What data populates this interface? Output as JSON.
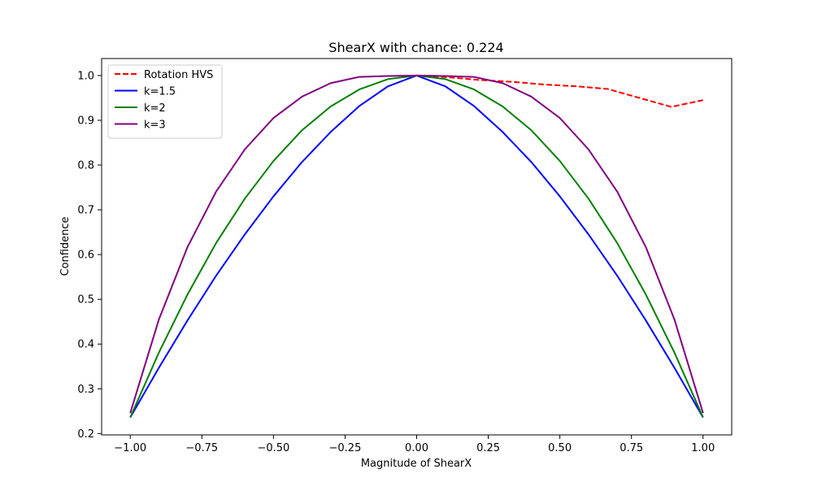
{
  "chart_data": {
    "type": "line",
    "title": "ShearX with chance: 0.224",
    "xlabel": "Magnitude of ShearX",
    "ylabel": "Confidence",
    "xlim": [
      -1.1,
      1.1
    ],
    "ylim": [
      0.197,
      1.038
    ],
    "xticks": [
      -1.0,
      -0.75,
      -0.5,
      -0.25,
      0.0,
      0.25,
      0.5,
      0.75,
      1.0
    ],
    "xtick_labels": [
      "−1.00",
      "−0.75",
      "−0.50",
      "−0.25",
      "0.00",
      "0.25",
      "0.50",
      "0.75",
      "1.00"
    ],
    "yticks": [
      0.2,
      0.3,
      0.4,
      0.5,
      0.6,
      0.7,
      0.8,
      0.9,
      1.0
    ],
    "ytick_labels": [
      "0.2",
      "0.3",
      "0.4",
      "0.5",
      "0.6",
      "0.7",
      "0.8",
      "0.9",
      "1.0"
    ],
    "grid": false,
    "legend_position": "top-left",
    "series": [
      {
        "name": "Rotation HVS",
        "color": "#ff0000",
        "dash": true,
        "x": [
          0.0,
          0.111,
          0.222,
          0.333,
          0.444,
          0.556,
          0.667,
          0.778,
          0.889,
          1.0
        ],
        "y": [
          1.0,
          0.996,
          0.99,
          0.986,
          0.98,
          0.976,
          0.97,
          0.95,
          0.93,
          0.945
        ]
      },
      {
        "name": "k=1.5",
        "color": "#0000ff",
        "dash": false,
        "x": [
          -1.0,
          -0.9,
          -0.8,
          -0.7,
          -0.6,
          -0.5,
          -0.4,
          -0.3,
          -0.2,
          -0.1,
          0.0,
          0.1,
          0.2,
          0.3,
          0.4,
          0.5,
          0.6,
          0.7,
          0.8,
          0.9,
          1.0
        ],
        "y": [
          0.236,
          0.347,
          0.453,
          0.553,
          0.645,
          0.73,
          0.807,
          0.874,
          0.932,
          0.976,
          1.0,
          0.976,
          0.932,
          0.874,
          0.807,
          0.73,
          0.645,
          0.553,
          0.453,
          0.347,
          0.236
        ]
      },
      {
        "name": "k=2",
        "color": "#008000",
        "dash": false,
        "x": [
          -1.0,
          -0.9,
          -0.8,
          -0.7,
          -0.6,
          -0.5,
          -0.4,
          -0.3,
          -0.2,
          -0.1,
          0.0,
          0.1,
          0.2,
          0.3,
          0.4,
          0.5,
          0.6,
          0.7,
          0.8,
          0.9,
          1.0
        ],
        "y": [
          0.236,
          0.381,
          0.511,
          0.626,
          0.725,
          0.809,
          0.878,
          0.931,
          0.969,
          0.992,
          1.0,
          0.992,
          0.969,
          0.931,
          0.878,
          0.809,
          0.725,
          0.626,
          0.511,
          0.381,
          0.236
        ]
      },
      {
        "name": "k=3",
        "color": "#800080",
        "dash": false,
        "x": [
          -1.0,
          -0.9,
          -0.8,
          -0.7,
          -0.6,
          -0.5,
          -0.4,
          -0.3,
          -0.2,
          -0.1,
          0.0,
          0.1,
          0.2,
          0.3,
          0.4,
          0.5,
          0.6,
          0.7,
          0.8,
          0.9,
          1.0
        ],
        "y": [
          0.246,
          0.455,
          0.617,
          0.741,
          0.835,
          0.905,
          0.953,
          0.983,
          0.997,
          0.999,
          1.0,
          0.999,
          0.997,
          0.983,
          0.953,
          0.905,
          0.835,
          0.741,
          0.617,
          0.455,
          0.246
        ]
      }
    ]
  }
}
